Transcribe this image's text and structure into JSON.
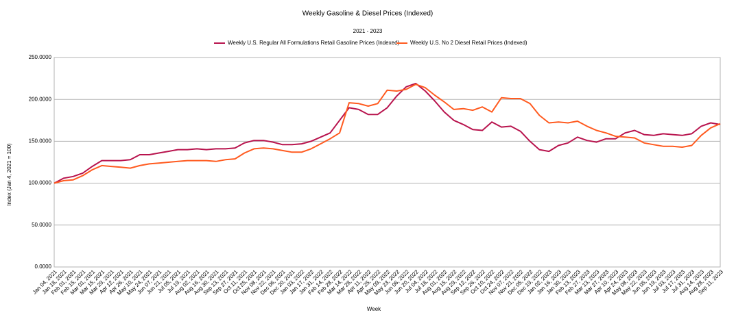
{
  "chart_data": {
    "type": "line",
    "title": "Weekly Gasoline & Diesel Prices (Indexed)",
    "subtitle": "2021 - 2023",
    "y_label": "Index (Jan 4, 2021 = 100)",
    "x_label": "Week",
    "categories": [
      "Jan 04, 2021",
      "Jan 18, 2021",
      "Feb 01, 2021",
      "Feb 15, 2021",
      "Mar 01, 2021",
      "Mar 15, 2021",
      "Mar 29, 2021",
      "Apr 12, 2021",
      "Apr 26, 2021",
      "May 10, 2021",
      "May 24, 2021",
      "Jun 07, 2021",
      "Jun 21, 2021",
      "Jul 05, 2021",
      "Jul 19, 2021",
      "Aug 02, 2021",
      "Aug 16, 2021",
      "Aug 30, 2021",
      "Sep 13, 2021",
      "Sep 27, 2021",
      "Oct 11, 2021",
      "Oct 25, 2021",
      "Nov 08, 2021",
      "Nov 22, 2021",
      "Dec 06, 2021",
      "Dec 20, 2021",
      "Jan 03, 2022",
      "Jan 17, 2022",
      "Jan 31, 2022",
      "Feb 14, 2022",
      "Feb 28, 2022",
      "Mar 14, 2022",
      "Mar 28, 2022",
      "Apr 11, 2022",
      "Apr 25, 2022",
      "May 09, 2022",
      "May 23, 2022",
      "Jun 06, 2022",
      "Jun 20, 2022",
      "Jul 04, 2022",
      "Jul 18, 2022",
      "Aug 01, 2022",
      "Aug 15, 2022",
      "Aug 29, 2022",
      "Sep 12, 2022",
      "Sep 26, 2022",
      "Oct 10, 2022",
      "Oct 24, 2022",
      "Nov 07, 2022",
      "Nov 21, 2022",
      "Dec 05, 2022",
      "Dec 19, 2022",
      "Jan 02, 2023",
      "Jan 16, 2023",
      "Jan 30, 2023",
      "Feb 13, 2023",
      "Feb 27, 2023",
      "Mar 13, 2023",
      "Mar 27, 2023",
      "Apr 10, 2023",
      "Apr 24, 2023",
      "May 08, 2023",
      "May 22, 2023",
      "Jun 05, 2023",
      "Jun 19, 2023",
      "Jul 03, 2023",
      "Jul 17, 2023",
      "Jul 31, 2023",
      "Aug 14, 2023",
      "Aug 28, 2023",
      "Sep 11, 2023"
    ],
    "series": [
      {
        "name": "Weekly U.S. Regular All Formulations Retail Gasoline Prices (Indexed)",
        "color": "#b8134d",
        "values": [
          100,
          106,
          108,
          112,
          120,
          127,
          127,
          127,
          128,
          134,
          134,
          136,
          138,
          140,
          140,
          141,
          140,
          141,
          141,
          142,
          148,
          151,
          151,
          149,
          146,
          146,
          147,
          150,
          155,
          160,
          175,
          190,
          188,
          182,
          182,
          190,
          204,
          215,
          219,
          210,
          198,
          185,
          175,
          170,
          164,
          163,
          173,
          167,
          168,
          162,
          150,
          140,
          138,
          145,
          148,
          155,
          151,
          149,
          153,
          153,
          160,
          163,
          158,
          157,
          159,
          158,
          157,
          159,
          168,
          172,
          170
        ]
      },
      {
        "name": "Weekly U.S. No 2 Diesel Retail Prices  (Indexed)",
        "color": "#ff5a1f",
        "values": [
          100,
          103,
          104,
          109,
          116,
          121,
          120,
          119,
          118,
          121,
          123,
          124,
          125,
          126,
          127,
          127,
          127,
          126,
          128,
          129,
          136,
          141,
          142,
          141,
          139,
          137,
          137,
          141,
          147,
          153,
          160,
          196,
          195,
          192,
          195,
          211,
          210,
          212,
          218,
          214,
          205,
          197,
          188,
          189,
          187,
          191,
          185,
          202,
          201,
          201,
          195,
          181,
          172,
          173,
          172,
          174,
          168,
          163,
          160,
          156,
          155,
          154,
          148,
          146,
          144,
          144,
          143,
          145,
          157,
          166,
          171
        ]
      }
    ],
    "ylim": [
      0,
      250
    ],
    "yticks": [
      {
        "value": 0,
        "label": "0.0000"
      },
      {
        "value": 50,
        "label": "50.0000"
      },
      {
        "value": 100,
        "label": "100.0000"
      },
      {
        "value": 150,
        "label": "150.0000"
      },
      {
        "value": 200,
        "label": "200.0000"
      },
      {
        "value": 250,
        "label": "250.0000"
      }
    ],
    "grid": true,
    "legend": "top"
  }
}
